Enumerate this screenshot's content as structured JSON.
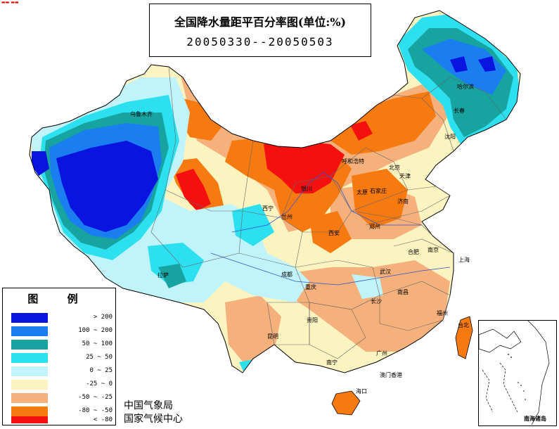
{
  "title": {
    "main": "全国降水量距平百分率图(单位:%)",
    "dates": "20050330--20050503"
  },
  "legend": {
    "heading": "图 例",
    "items": [
      {
        "label": "> 200",
        "color": "#0a14e0"
      },
      {
        "label": "100 ~ 200",
        "color": "#1a7ef0"
      },
      {
        "label": "50 ~ 100",
        "color": "#17a3a0"
      },
      {
        "label": "25 ~ 50",
        "color": "#2de0f0"
      },
      {
        "label": "0 ~ 25",
        "color": "#c0f4fa"
      },
      {
        "label": "-25 ~ 0",
        "color": "#fbf3c0"
      },
      {
        "label": "-50 ~ -25",
        "color": "#f6b07c"
      },
      {
        "label": "-80 ~ -50",
        "color": "#f77a10"
      },
      {
        "label": "< -80",
        "color": "#f51010"
      }
    ]
  },
  "agency": {
    "line1": "中国气象局",
    "line2": "国家气候中心"
  },
  "inset": {
    "label": "南海诸岛"
  },
  "cities": [
    {
      "name": "乌鲁木齐",
      "id": "urumqi"
    },
    {
      "name": "哈尔滨",
      "id": "harbin"
    },
    {
      "name": "长春",
      "id": "changchun"
    },
    {
      "name": "沈阳",
      "id": "shenyang"
    },
    {
      "name": "呼和浩特",
      "id": "hohhot"
    },
    {
      "name": "北京",
      "id": "beijing"
    },
    {
      "name": "天津",
      "id": "tianjin"
    },
    {
      "name": "石家庄",
      "id": "shijiazhuang"
    },
    {
      "name": "太原",
      "id": "taiyuan"
    },
    {
      "name": "济南",
      "id": "jinan"
    },
    {
      "name": "银川",
      "id": "yinchuan"
    },
    {
      "name": "西宁",
      "id": "xining"
    },
    {
      "name": "兰州",
      "id": "lanzhou"
    },
    {
      "name": "西安",
      "id": "xian"
    },
    {
      "name": "郑州",
      "id": "zhengzhou"
    },
    {
      "name": "合肥",
      "id": "hefei"
    },
    {
      "name": "南京",
      "id": "nanjing"
    },
    {
      "name": "上海",
      "id": "shanghai"
    },
    {
      "name": "武汉",
      "id": "wuhan"
    },
    {
      "name": "成都",
      "id": "chengdu"
    },
    {
      "name": "重庆",
      "id": "chongqing"
    },
    {
      "name": "拉萨",
      "id": "lhasa"
    },
    {
      "name": "长沙",
      "id": "changsha"
    },
    {
      "name": "南昌",
      "id": "nanchang"
    },
    {
      "name": "福州",
      "id": "fuzhou"
    },
    {
      "name": "贵阳",
      "id": "guiyang"
    },
    {
      "name": "昆明",
      "id": "kunming"
    },
    {
      "name": "南宁",
      "id": "nanning"
    },
    {
      "name": "广州",
      "id": "guangzhou"
    },
    {
      "name": "台北",
      "id": "taipei"
    },
    {
      "name": "澳门香港",
      "id": "hkmacau"
    },
    {
      "name": "海口",
      "id": "haikou"
    }
  ]
}
